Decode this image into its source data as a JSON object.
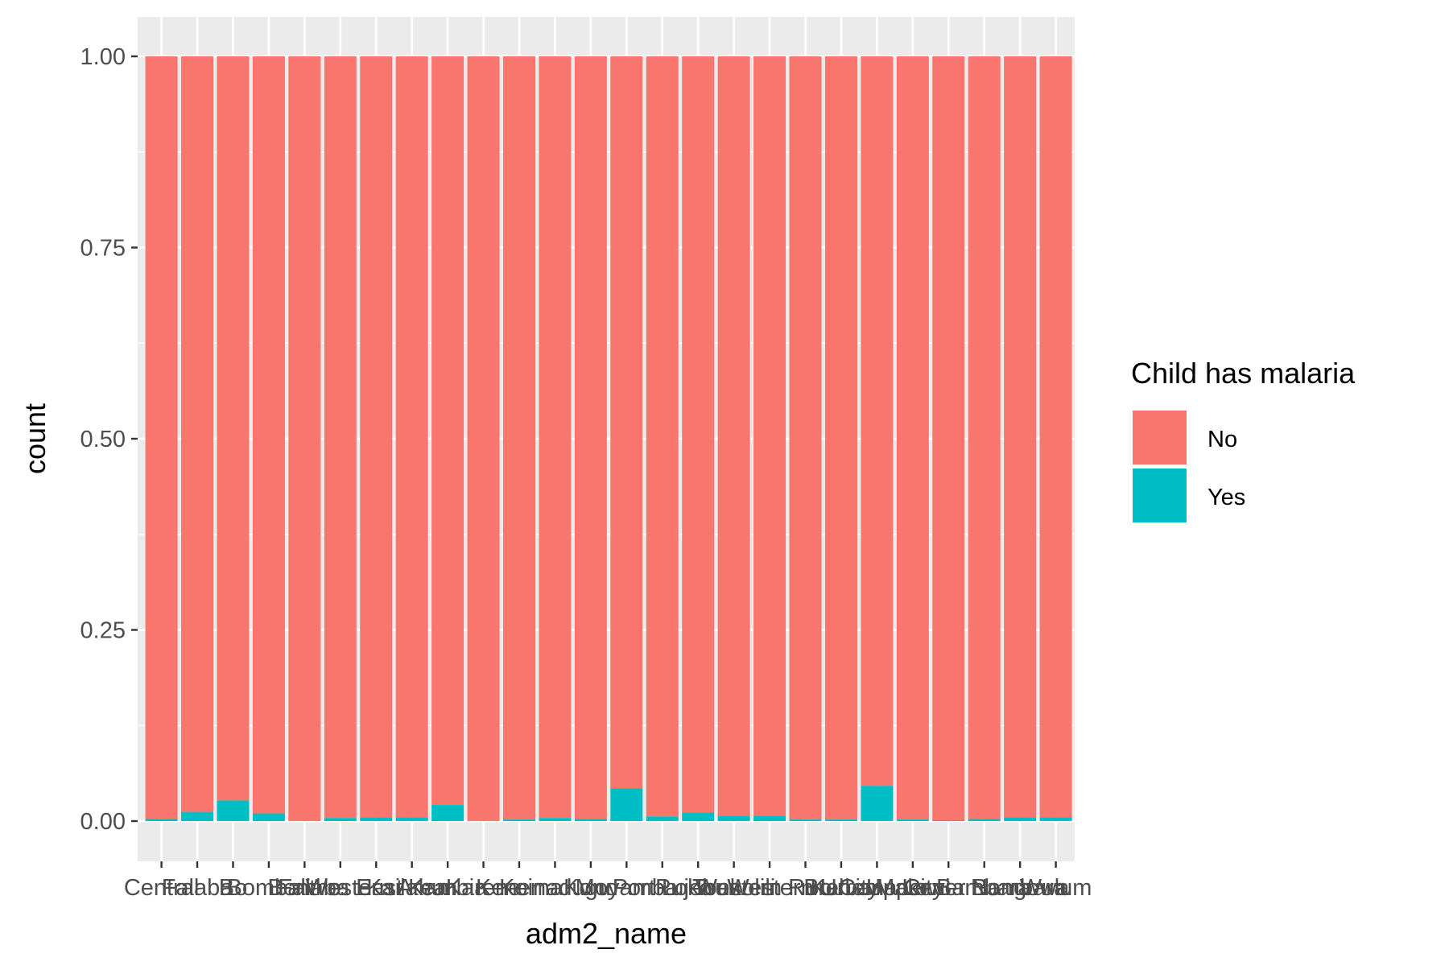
{
  "chart_data": {
    "type": "bar",
    "stacked": "fill",
    "title": "",
    "xlabel": "adm2_name",
    "ylabel": "count",
    "ylim": [
      0,
      1
    ],
    "yticks": [
      "0.00",
      "0.25",
      "0.50",
      "0.75",
      "1.00"
    ],
    "ytick_values": [
      0,
      0.25,
      0.5,
      0.75,
      1.0
    ],
    "categories": [
      "Central",
      "Falaba",
      "Bo",
      "Bombali",
      "Bonthe",
      "Falaba East",
      "Western Area",
      "Kailahun",
      "Kambia",
      "Karene",
      "Kenema",
      "Koinadugu",
      "Kono",
      "Moyamba",
      "Port Loko",
      "Pujehun",
      "Tonkolili",
      "Western Rural",
      "Western Urban",
      "Bo City",
      "Kenema City",
      "Makeni",
      "Upper Bambara",
      "Lower Bambara",
      "Nongowa",
      "Wulum"
    ],
    "series": [
      {
        "name": "No",
        "color": "#F8766D",
        "values": [
          0.997,
          0.988,
          0.973,
          0.99,
          1.0,
          0.996,
          0.995,
          0.995,
          0.979,
          1.0,
          0.998,
          0.996,
          0.997,
          0.957,
          0.994,
          0.989,
          0.993,
          0.993,
          0.998,
          0.998,
          0.954,
          0.998,
          0.999,
          0.997,
          0.995,
          0.995
        ]
      },
      {
        "name": "Yes",
        "color": "#00BFC4",
        "values": [
          0.003,
          0.012,
          0.027,
          0.01,
          0.0,
          0.004,
          0.005,
          0.005,
          0.021,
          0.0,
          0.002,
          0.004,
          0.003,
          0.043,
          0.006,
          0.011,
          0.007,
          0.007,
          0.002,
          0.002,
          0.046,
          0.002,
          0.001,
          0.003,
          0.005,
          0.005
        ]
      }
    ],
    "legend": {
      "title": "Child has malaria",
      "position": "right",
      "entries": [
        "No",
        "Yes"
      ]
    },
    "grid": true,
    "panel_background": "#EBEBEB",
    "grid_color": "#FFFFFF"
  }
}
